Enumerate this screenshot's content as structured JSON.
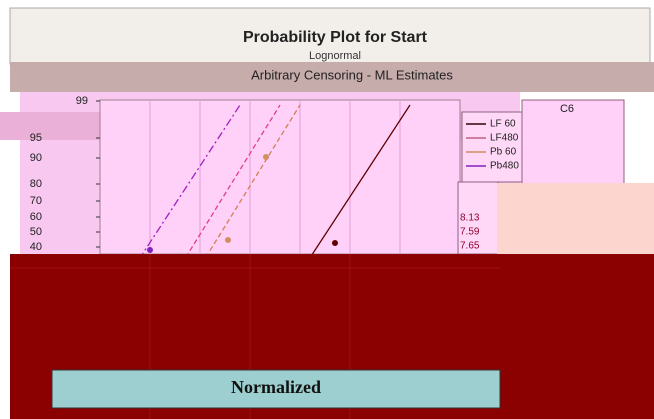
{
  "window": {
    "title": "Probability Plot for Start",
    "subtitle": "Lognormal",
    "caption": "Arbitrary Censoring - ML Estimates"
  },
  "plot": {
    "yticks": [
      "99",
      "95",
      "90",
      "80",
      "70",
      "60",
      "50",
      "40"
    ]
  },
  "legend": {
    "entries": [
      "LF 60",
      "LF480",
      "Pb 60",
      "Pb480"
    ]
  },
  "table": {
    "header": "C6",
    "values": [
      "8.13",
      "7.59",
      "7.65"
    ]
  },
  "banner": "Normalized"
}
